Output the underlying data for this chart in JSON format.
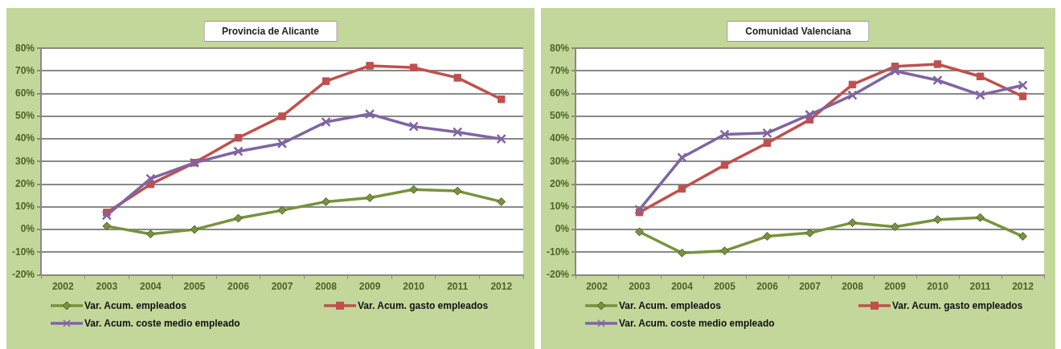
{
  "chart_data": [
    {
      "type": "line",
      "title": "Provincia de Alicante",
      "categories": [
        "2002",
        "2003",
        "2004",
        "2005",
        "2006",
        "2007",
        "2008",
        "2009",
        "2010",
        "2011",
        "2012"
      ],
      "series": [
        {
          "name": "Var. Acum. empleados",
          "color": "#77933c",
          "marker": "diamond",
          "values": [
            null,
            1.5,
            -2,
            0,
            5,
            8.5,
            12.3,
            14,
            17.7,
            17,
            12.3
          ]
        },
        {
          "name": "Var. Acum. gasto empleados",
          "color": "#c0504d",
          "marker": "square",
          "values": [
            null,
            7.5,
            20,
            29.5,
            40.5,
            50,
            65.5,
            72.3,
            71.5,
            67,
            57.5
          ]
        },
        {
          "name": "Var. Acum. coste medio empleado",
          "color": "#8064a2",
          "marker": "cross",
          "values": [
            null,
            6.3,
            22.5,
            29.5,
            34.5,
            38,
            47.5,
            51,
            45.5,
            43,
            40
          ]
        }
      ],
      "ylim": [
        -20,
        80
      ],
      "yticks": [
        {
          "value": -20,
          "label": "-20%"
        },
        {
          "value": -10,
          "label": "-10%"
        },
        {
          "value": 0,
          "label": "0%"
        },
        {
          "value": 10,
          "label": "10%"
        },
        {
          "value": 20,
          "label": "20%"
        },
        {
          "value": 30,
          "label": "30%"
        },
        {
          "value": 40,
          "label": "40%"
        },
        {
          "value": 50,
          "label": "50%"
        },
        {
          "value": 60,
          "label": "60%"
        },
        {
          "value": 70,
          "label": "70%"
        },
        {
          "value": 80,
          "label": "80%"
        }
      ],
      "grid": "y",
      "legend": "bottom"
    },
    {
      "type": "line",
      "title": "Comunidad Valenciana",
      "categories": [
        "2002",
        "2003",
        "2004",
        "2005",
        "2006",
        "2007",
        "2008",
        "2009",
        "2010",
        "2011",
        "2012"
      ],
      "series": [
        {
          "name": "Var. Acum. empleados",
          "color": "#77933c",
          "marker": "diamond",
          "values": [
            null,
            -1,
            -10.3,
            -9.4,
            -3,
            -1.5,
            3,
            1.2,
            4.4,
            5.3,
            -3
          ]
        },
        {
          "name": "Var. Acum. gasto empleados",
          "color": "#c0504d",
          "marker": "square",
          "values": [
            null,
            7.6,
            18,
            28.5,
            38.2,
            48.5,
            64,
            72,
            73,
            67.6,
            58.8
          ]
        },
        {
          "name": "Var. Acum. coste medio empleado",
          "color": "#8064a2",
          "marker": "cross",
          "values": [
            null,
            8.8,
            31.8,
            42,
            42.6,
            50.7,
            59.3,
            70,
            65.9,
            59.4,
            63.7
          ]
        }
      ],
      "ylim": [
        -20,
        80
      ],
      "yticks": [
        {
          "value": -20,
          "label": "-20%"
        },
        {
          "value": -10,
          "label": "-10%"
        },
        {
          "value": 0,
          "label": "0%"
        },
        {
          "value": 10,
          "label": "10%"
        },
        {
          "value": 20,
          "label": "20%"
        },
        {
          "value": 30,
          "label": "30%"
        },
        {
          "value": 40,
          "label": "40%"
        },
        {
          "value": 50,
          "label": "50%"
        },
        {
          "value": 60,
          "label": "60%"
        },
        {
          "value": 70,
          "label": "70%"
        },
        {
          "value": 80,
          "label": "80%"
        }
      ],
      "grid": "y",
      "legend": "bottom"
    }
  ]
}
